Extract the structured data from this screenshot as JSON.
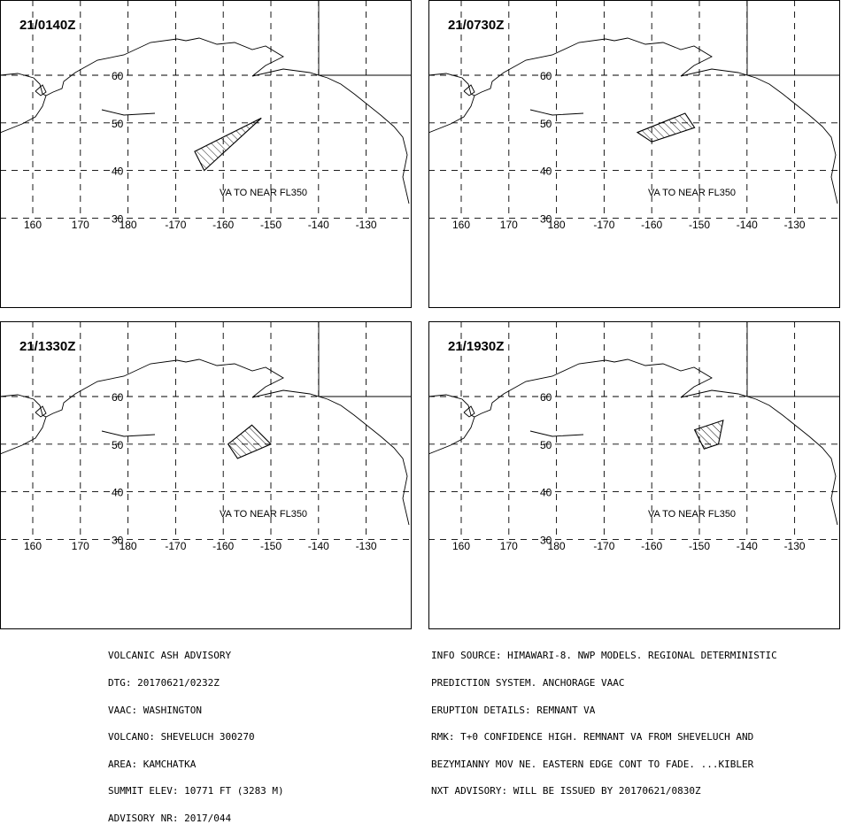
{
  "panels": [
    {
      "time": "21/0140Z",
      "label": "VA TO NEAR FL350",
      "polygon": [
        [
          -166,
          44
        ],
        [
          -152,
          51
        ],
        [
          -164,
          40
        ]
      ]
    },
    {
      "time": "21/0730Z",
      "label": "VA TO NEAR FL350",
      "polygon": [
        [
          -163,
          48
        ],
        [
          -153,
          52
        ],
        [
          -151,
          49
        ],
        [
          -160,
          46
        ]
      ]
    },
    {
      "time": "21/1330Z",
      "label": "VA TO NEAR FL350",
      "polygon": [
        [
          -159,
          50
        ],
        [
          -154,
          54
        ],
        [
          -150,
          50
        ],
        [
          -157,
          47
        ]
      ]
    },
    {
      "time": "21/1930Z",
      "label": "VA TO NEAR FL350",
      "polygon": [
        [
          -151,
          53
        ],
        [
          -145,
          55
        ],
        [
          -146,
          50
        ],
        [
          -149,
          49
        ]
      ]
    }
  ],
  "map": {
    "lon_labels": [
      "160",
      "170",
      "180",
      "-170",
      "-160",
      "-150",
      "-140",
      "-130"
    ],
    "lat_labels": [
      "60",
      "50",
      "40",
      "30"
    ]
  },
  "advisory_left": [
    "VOLCANIC ASH ADVISORY",
    "DTG: 20170621/0232Z",
    "VAAC: WASHINGTON",
    "VOLCANO: SHEVELUCH 300270",
    "AREA: KAMCHATKA",
    "SUMMIT ELEV: 10771 FT (3283 M)",
    "ADVISORY NR: 2017/044"
  ],
  "advisory_right": [
    "INFO SOURCE: HIMAWARI-8. NWP MODELS. REGIONAL DETERMINISTIC",
    "PREDICTION SYSTEM. ANCHORAGE VAAC",
    "ERUPTION DETAILS: REMNANT VA",
    "RMK: T+0 CONFIDENCE HIGH. REMNANT VA FROM SHEVELUCH AND",
    "BEZYMIANNY MOV NE. EASTERN EDGE CONT TO FADE. ...KIBLER",
    "NXT ADVISORY: WILL BE ISSUED BY 20170621/0830Z"
  ]
}
